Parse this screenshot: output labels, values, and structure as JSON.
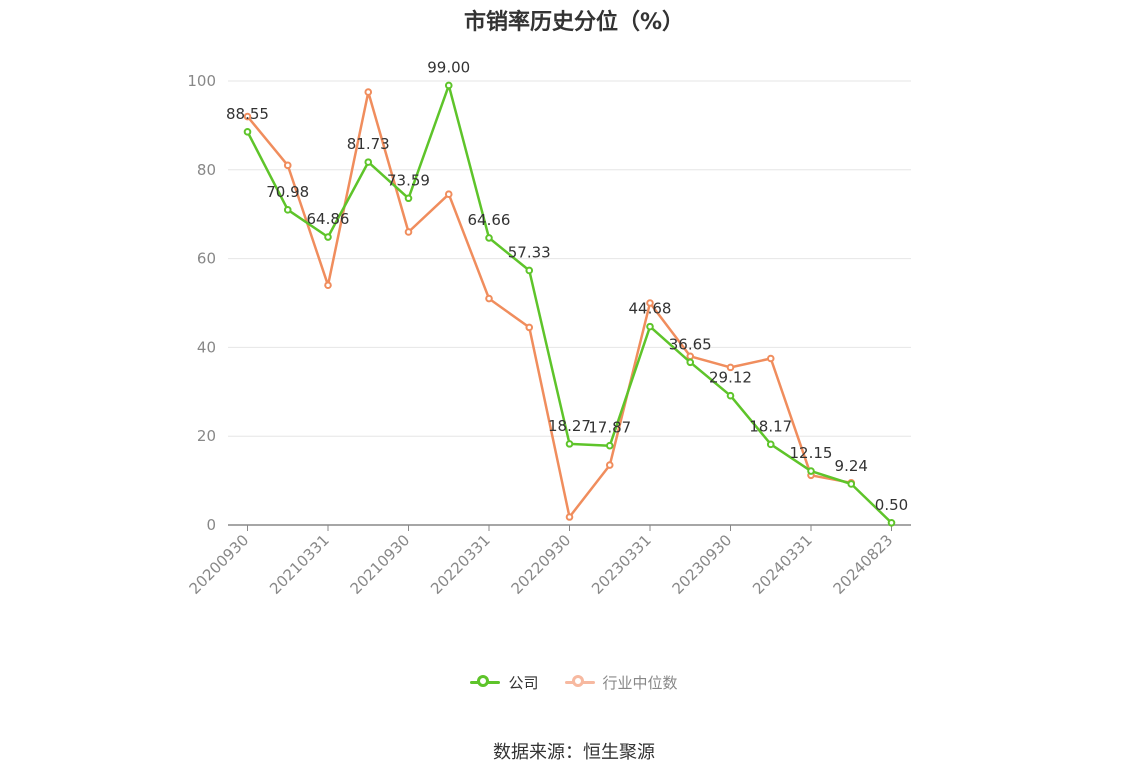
{
  "colors": {
    "company": "#5ec42a",
    "industry": "#f08d5d",
    "industry_legend": "#f7b9a0",
    "grid": "#e6e6e6",
    "axis": "#888888"
  },
  "legend": {
    "company": "公司",
    "industry": "行业中位数"
  },
  "source": "数据来源：恒生聚源",
  "chart_data": {
    "type": "line",
    "title": "市销率历史分位（%）",
    "xlabel": "",
    "ylabel": "",
    "ylim": [
      0,
      100
    ],
    "yticks": [
      0,
      20,
      40,
      60,
      80,
      100
    ],
    "grid": true,
    "legend_position": "bottom",
    "x_tick_labels": [
      "20200930",
      "20210331",
      "20210930",
      "20220331",
      "20220930",
      "20230331",
      "20230930",
      "20240331",
      "20240823"
    ],
    "x_tick_indices": [
      0,
      2,
      4,
      6,
      8,
      10,
      12,
      14,
      16
    ],
    "series": [
      {
        "name": "公司",
        "values": [
          88.55,
          70.98,
          64.86,
          81.73,
          73.59,
          99.0,
          64.66,
          57.33,
          18.27,
          17.87,
          44.68,
          36.65,
          29.12,
          18.17,
          12.15,
          9.24,
          0.5
        ],
        "labels": [
          "88.55",
          "70.98",
          "64.86",
          "81.73",
          "73.59",
          "99.00",
          "64.66",
          "57.33",
          "18.27",
          "17.87",
          "44.68",
          "36.65",
          "29.12",
          "18.17",
          "12.15",
          "9.24",
          "0.50"
        ]
      },
      {
        "name": "行业中位数",
        "values": [
          92,
          81,
          54,
          97.5,
          66,
          74.5,
          51,
          44.5,
          1.8,
          13.5,
          50,
          38,
          35.5,
          37.5,
          11.2,
          9.5
        ]
      }
    ]
  }
}
